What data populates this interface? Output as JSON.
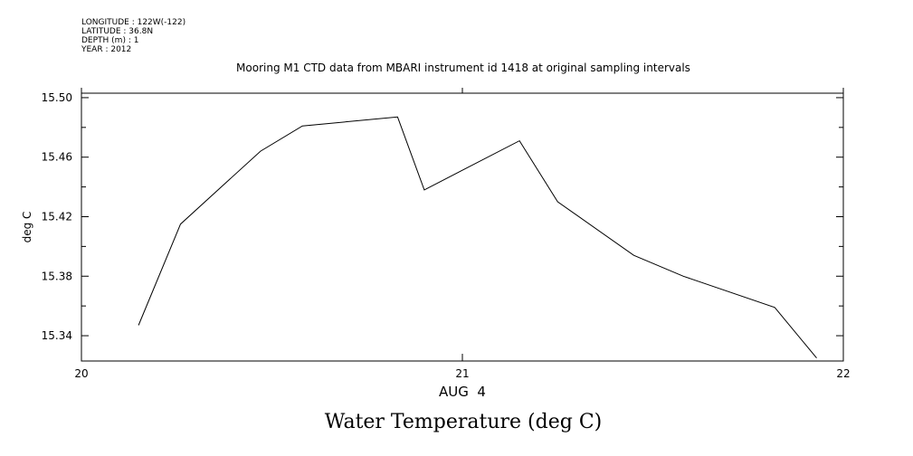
{
  "header": {
    "longitude": "LONGITUDE : 122W(-122)",
    "latitude": "LATITUDE : 36.8N",
    "depth": "DEPTH (m) : 1",
    "year": "YEAR : 2012"
  },
  "chart_data": {
    "type": "line",
    "title": "Mooring M1 CTD data from MBARI instrument id 1418 at original sampling intervals",
    "bottom_title": "Water Temperature (deg C)",
    "ylabel": "deg C",
    "xlabel": "AUG  4",
    "x_ticks": [
      "20",
      "21",
      "22"
    ],
    "y_ticks": [
      "15.34",
      "15.38",
      "15.42",
      "15.46",
      "15.50"
    ],
    "xlim": [
      20,
      22
    ],
    "ylim": [
      15.323,
      15.503
    ],
    "series": [
      {
        "x": [
          20.15,
          20.26,
          20.47,
          20.58,
          20.83,
          20.9,
          21.15,
          21.25,
          21.45,
          21.58,
          21.82,
          21.93
        ],
        "values": [
          15.347,
          15.415,
          15.464,
          15.481,
          15.487,
          15.438,
          15.471,
          15.43,
          15.394,
          15.38,
          15.359,
          15.325
        ]
      }
    ],
    "grid": false,
    "color": "#000000"
  }
}
